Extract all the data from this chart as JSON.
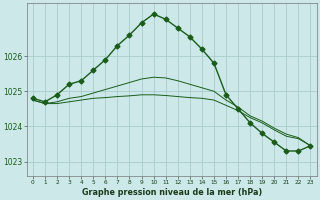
{
  "title": "Graphe pression niveau de la mer (hPa)",
  "background_color": "#cce8e8",
  "grid_color": "#aacccc",
  "line_color": "#1a5c1a",
  "xlim": [
    -0.5,
    23.5
  ],
  "ylim": [
    1022.6,
    1027.5
  ],
  "yticks": [
    1023,
    1024,
    1025,
    1026
  ],
  "xticks": [
    0,
    1,
    2,
    3,
    4,
    5,
    6,
    7,
    8,
    9,
    10,
    11,
    12,
    13,
    14,
    15,
    16,
    17,
    18,
    19,
    20,
    21,
    22,
    23
  ],
  "series_main": [
    1024.8,
    1024.7,
    1024.9,
    1025.2,
    1025.3,
    1025.6,
    1025.9,
    1026.3,
    1026.6,
    1026.95,
    1027.2,
    1027.05,
    1026.8,
    1026.55,
    1026.2,
    1025.8,
    1024.9,
    1024.5,
    1024.1,
    1023.8,
    1023.55,
    1023.3,
    1023.3,
    1023.45
  ],
  "series_min": [
    1024.75,
    1024.65,
    1024.65,
    1024.7,
    1024.75,
    1024.8,
    1024.82,
    1024.85,
    1024.87,
    1024.9,
    1024.9,
    1024.88,
    1024.85,
    1024.82,
    1024.8,
    1024.75,
    1024.6,
    1024.45,
    1024.25,
    1024.1,
    1023.9,
    1023.72,
    1023.65,
    1023.45
  ],
  "series_max": [
    1024.75,
    1024.65,
    1024.7,
    1024.8,
    1024.85,
    1024.95,
    1025.05,
    1025.15,
    1025.25,
    1025.35,
    1025.4,
    1025.38,
    1025.3,
    1025.2,
    1025.1,
    1025.0,
    1024.75,
    1024.55,
    1024.3,
    1024.15,
    1023.95,
    1023.78,
    1023.68,
    1023.45
  ],
  "marker": "D",
  "marker_size": 2.5,
  "linewidth_main": 1.0,
  "linewidth_minmax": 0.7
}
